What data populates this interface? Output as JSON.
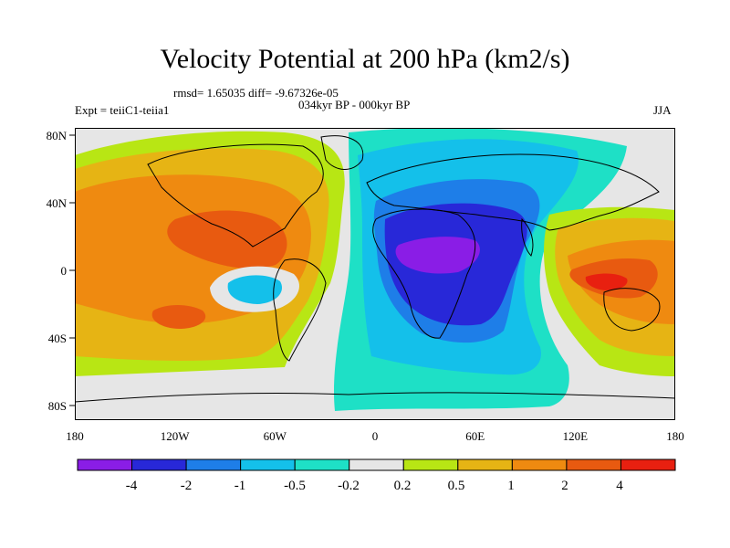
{
  "title": "Velocity Potential at 200 hPa (km2/s)",
  "stats": "rmsd= 1.65035 diff= -9.67326e-05",
  "expt": "Expt = teiiC1-teiia1",
  "period": "034kyr BP - 000kyr BP",
  "season": "JJA",
  "lat_labels": [
    "80N",
    "40N",
    "0",
    "40S",
    "80S"
  ],
  "lon_labels": [
    "180",
    "120W",
    "60W",
    "0",
    "60E",
    "120E",
    "180"
  ],
  "colorbar": {
    "colors": [
      "#8a1de6",
      "#2828d8",
      "#1e7ee8",
      "#14c0ea",
      "#1ee0c6",
      "#e6e6e6",
      "#b8e614",
      "#e6b414",
      "#ef8a10",
      "#e85a10",
      "#e82010"
    ],
    "labels": [
      "-4",
      "-2",
      "-1",
      "-0.5",
      "-0.2",
      "0.2",
      "0.5",
      "1",
      "2",
      "4"
    ]
  }
}
